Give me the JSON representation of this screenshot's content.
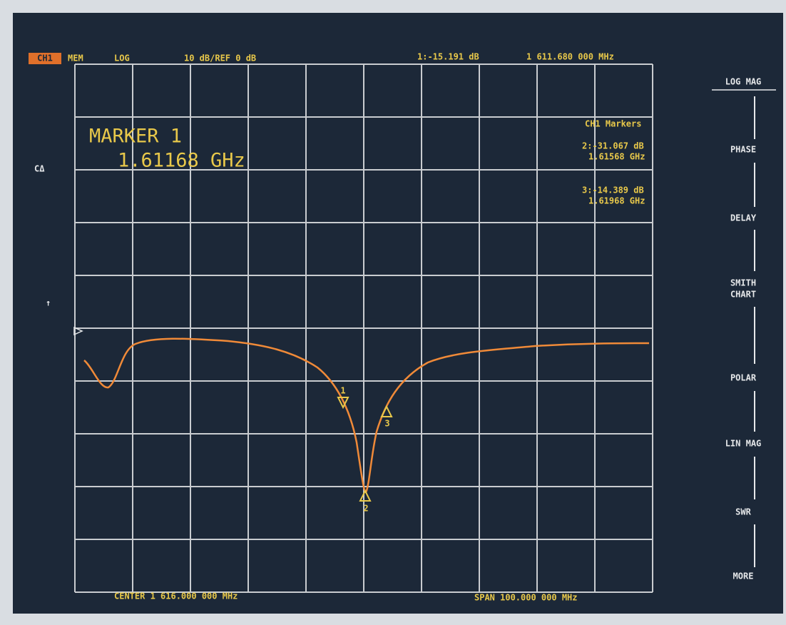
{
  "header": {
    "channel": "CH1",
    "mem": "MEM",
    "format": "LOG",
    "scale": "10 dB/REF 0 dB",
    "marker_readout": "1:-15.191 dB",
    "marker_freq": "1 611.680 000 MHz"
  },
  "marker_box": {
    "title": "MARKER 1",
    "value": "1.61168 GHz"
  },
  "markers_panel": {
    "title": "CH1 Markers",
    "entries": [
      {
        "label": "2:-31.067 dB",
        "freq": "1.61568 GHz"
      },
      {
        "label": "3:-14.389 dB",
        "freq": "1.61968 GHz"
      }
    ]
  },
  "side_labels": [
    "CΔ",
    "↑"
  ],
  "marker_tags": [
    "1",
    "2",
    "3"
  ],
  "footer": {
    "center": "CENTER 1 616.000 000 MHz",
    "span": "SPAN 100.000 000 MHz"
  },
  "softkeys": [
    "LOG MAG",
    "PHASE",
    "DELAY",
    "SMITH",
    "CHART",
    "POLAR",
    "LIN MAG",
    "SWR",
    "MORE"
  ]
}
